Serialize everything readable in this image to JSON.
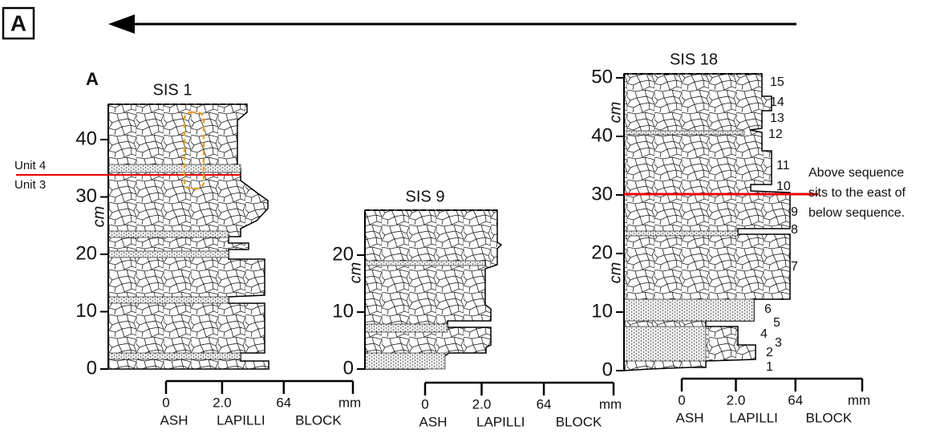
{
  "panel_label": "A",
  "columns": [
    {
      "label": "A",
      "title": "SIS 1",
      "yticks": [
        "0",
        "10",
        "20",
        "30",
        "40"
      ],
      "axis_unit": "cm",
      "scale": {
        "ticks": [
          "0",
          "2.0",
          "64",
          "mm"
        ],
        "classes": [
          "ASH",
          "LAPILLI",
          "BLOCK"
        ]
      },
      "annotations": [
        "Unit 4",
        "Unit 3"
      ]
    },
    {
      "title": "SIS 9",
      "yticks": [
        "0",
        "10",
        "20"
      ],
      "axis_unit": "cm",
      "scale": {
        "ticks": [
          "0",
          "2.0",
          "64",
          "mm"
        ],
        "classes": [
          "ASH",
          "LAPILLI",
          "BLOCK"
        ]
      }
    },
    {
      "title": "SIS 18",
      "yticks": [
        "0",
        "10",
        "20",
        "30",
        "40",
        "50"
      ],
      "axis_unit": "cm",
      "scale": {
        "ticks": [
          "0",
          "2.0",
          "64",
          "mm"
        ],
        "classes": [
          "ASH",
          "LAPILLI",
          "BLOCK"
        ]
      },
      "unit_numbers": [
        "1",
        "2",
        "3",
        "4",
        "5",
        "6",
        "7",
        "8",
        "9",
        "10",
        "11",
        "12",
        "13",
        "14",
        "15"
      ],
      "annotation": [
        "Above sequence",
        "sits to the east of",
        "below sequence."
      ]
    }
  ]
}
